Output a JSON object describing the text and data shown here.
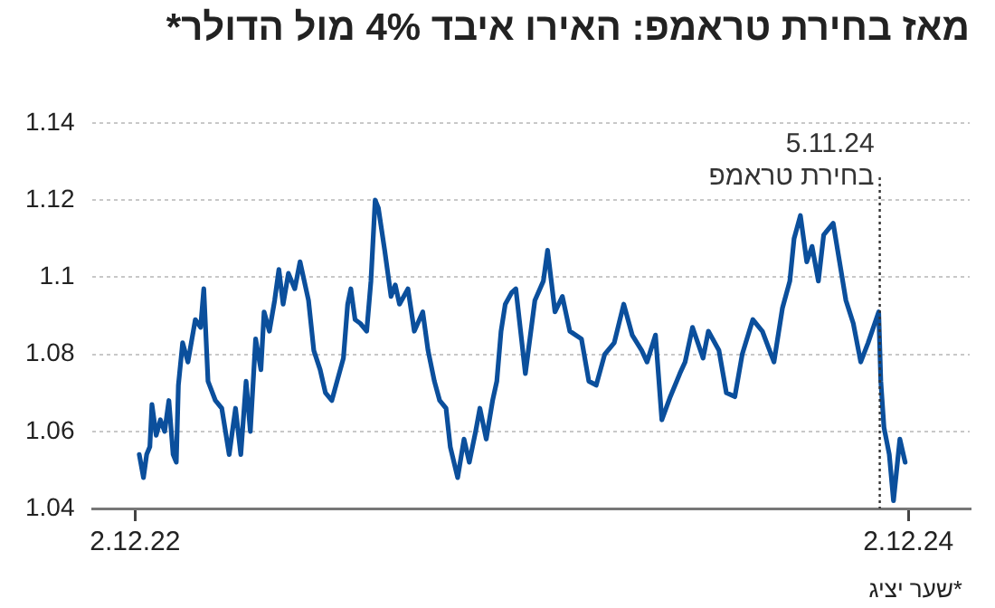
{
  "chart_data": {
    "type": "line",
    "title": "מאז בחירת טראמפ: האירו איבד 4% מול הדולר*",
    "annotations": [
      "*שער יציג"
    ],
    "x": [
      "2022-12-06",
      "2022-12-10",
      "2022-12-13",
      "2022-12-16",
      "2022-12-18",
      "2022-12-22",
      "2022-12-26",
      "2022-12-30",
      "2023-01-03",
      "2023-01-07",
      "2023-01-10",
      "2023-01-12",
      "2023-01-16",
      "2023-01-21",
      "2023-01-28",
      "2023-02-02",
      "2023-02-05",
      "2023-02-09",
      "2023-02-16",
      "2023-02-22",
      "2023-03-01",
      "2023-03-07",
      "2023-03-12",
      "2023-03-17",
      "2023-03-21",
      "2023-03-26",
      "2023-03-31",
      "2023-04-03",
      "2023-04-08",
      "2023-04-13",
      "2023-04-17",
      "2023-04-21",
      "2023-04-26",
      "2023-05-02",
      "2023-05-07",
      "2023-05-15",
      "2023-05-20",
      "2023-05-26",
      "2023-05-31",
      "2023-06-06",
      "2023-06-11",
      "2023-06-17",
      "2023-06-21",
      "2023-06-24",
      "2023-06-28",
      "2023-07-03",
      "2023-07-09",
      "2023-07-13",
      "2023-07-17",
      "2023-07-20",
      "2023-07-26",
      "2023-08-01",
      "2023-08-05",
      "2023-08-09",
      "2023-08-17",
      "2023-08-23",
      "2023-08-31",
      "2023-09-05",
      "2023-09-11",
      "2023-09-16",
      "2023-09-22",
      "2023-09-26",
      "2023-10-03",
      "2023-10-09",
      "2023-10-14",
      "2023-10-20",
      "2023-10-24",
      "2023-10-30",
      "2023-11-05",
      "2023-11-09",
      "2023-11-13",
      "2023-11-17",
      "2023-11-23",
      "2023-11-27",
      "2023-12-06",
      "2023-12-15",
      "2023-12-23",
      "2023-12-27",
      "2024-01-03",
      "2024-01-10",
      "2024-01-17",
      "2024-01-28",
      "2024-02-04",
      "2024-02-11",
      "2024-02-19",
      "2024-02-28",
      "2024-03-08",
      "2024-03-16",
      "2024-03-25",
      "2024-03-30",
      "2024-04-07",
      "2024-04-13",
      "2024-04-21",
      "2024-04-30",
      "2024-05-05",
      "2024-05-12",
      "2024-05-22",
      "2024-05-27",
      "2024-06-06",
      "2024-06-13",
      "2024-06-21",
      "2024-06-28",
      "2024-07-08",
      "2024-07-17",
      "2024-07-28",
      "2024-08-05",
      "2024-08-12",
      "2024-08-16",
      "2024-08-22",
      "2024-08-28",
      "2024-09-02",
      "2024-09-08",
      "2024-09-13",
      "2024-09-22",
      "2024-09-28",
      "2024-10-04",
      "2024-10-11",
      "2024-10-18",
      "2024-10-25",
      "2024-11-04",
      "2024-11-06",
      "2024-11-09",
      "2024-11-14",
      "2024-11-18",
      "2024-11-24",
      "2024-11-29"
    ],
    "series": [
      {
        "color": "#0b4f9c",
        "values": [
          1.054,
          1.048,
          1.054,
          1.056,
          1.067,
          1.059,
          1.063,
          1.06,
          1.068,
          1.054,
          1.052,
          1.072,
          1.083,
          1.078,
          1.089,
          1.087,
          1.097,
          1.073,
          1.068,
          1.066,
          1.054,
          1.066,
          1.054,
          1.073,
          1.06,
          1.084,
          1.076,
          1.091,
          1.086,
          1.094,
          1.102,
          1.093,
          1.101,
          1.097,
          1.104,
          1.094,
          1.081,
          1.076,
          1.07,
          1.068,
          1.073,
          1.079,
          1.093,
          1.097,
          1.089,
          1.088,
          1.086,
          1.099,
          1.12,
          1.118,
          1.107,
          1.095,
          1.098,
          1.093,
          1.097,
          1.086,
          1.091,
          1.081,
          1.073,
          1.068,
          1.066,
          1.056,
          1.048,
          1.058,
          1.052,
          1.06,
          1.066,
          1.058,
          1.068,
          1.073,
          1.086,
          1.093,
          1.096,
          1.097,
          1.075,
          1.094,
          1.099,
          1.107,
          1.091,
          1.095,
          1.086,
          1.084,
          1.073,
          1.072,
          1.08,
          1.083,
          1.093,
          1.085,
          1.081,
          1.078,
          1.085,
          1.063,
          1.069,
          1.075,
          1.078,
          1.087,
          1.079,
          1.086,
          1.081,
          1.07,
          1.069,
          1.08,
          1.089,
          1.086,
          1.078,
          1.092,
          1.099,
          1.11,
          1.116,
          1.104,
          1.108,
          1.099,
          1.111,
          1.114,
          1.104,
          1.094,
          1.088,
          1.078,
          1.083,
          1.091,
          1.073,
          1.061,
          1.054,
          1.042,
          1.058,
          1.052
        ]
      }
    ],
    "xlim": [
      "2022-10-23",
      "2025-01-29"
    ],
    "xticks": [
      {
        "value": "2022-12-02",
        "label": "2.12.22"
      },
      {
        "value": "2024-12-02",
        "label": "2.12.24"
      }
    ],
    "ylim": [
      1.04,
      1.14
    ],
    "yticks": [
      1.04,
      1.06,
      1.08,
      1.1,
      1.12,
      1.14
    ],
    "grid": "y",
    "legend": false,
    "marker": "none",
    "line_style": "solid",
    "ref_lines": [
      {
        "axis": "x",
        "value": "2024-11-05",
        "label": "5.11.24\nבחירת טראמפ",
        "line_style": "dotted",
        "color": "#333333"
      }
    ]
  }
}
